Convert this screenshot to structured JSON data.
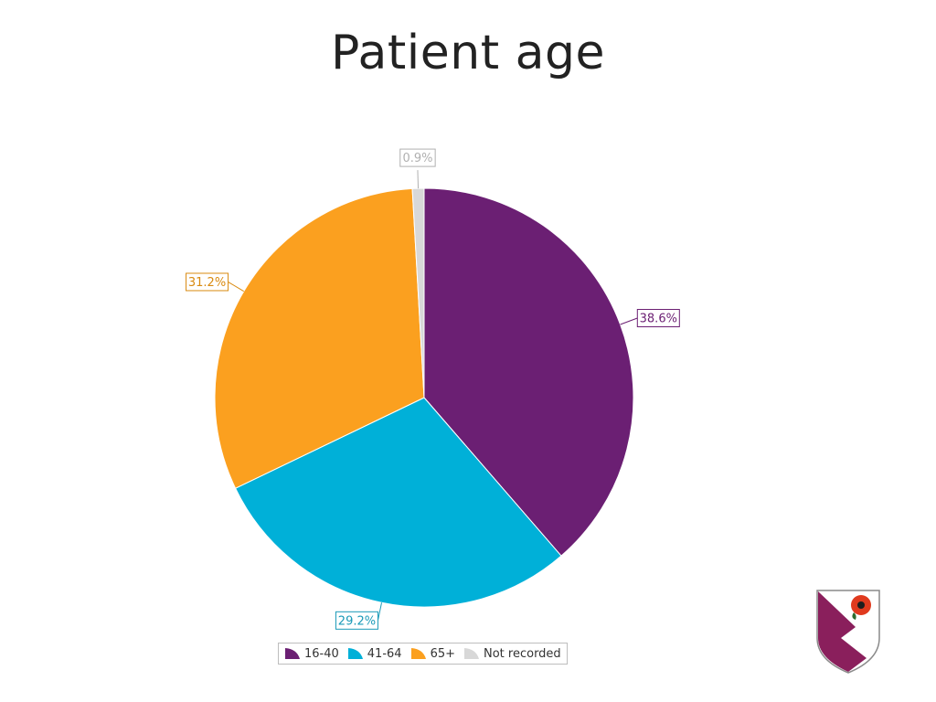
{
  "slide": {
    "title": "Patient age"
  },
  "chart_data": {
    "type": "pie",
    "title": "Patient age",
    "categories": [
      "16-40",
      "41-64",
      "65+",
      "Not recorded"
    ],
    "values": [
      38.6,
      29.2,
      31.2,
      0.9
    ],
    "data_labels": [
      "38.6%",
      "29.2%",
      "31.2%",
      "0.9%"
    ],
    "colors": [
      "#6b1f73",
      "#00b0d8",
      "#fba01f",
      "#d8d8d8"
    ],
    "label_text_colors": [
      "#6b1f73",
      "#1a9ab8",
      "#d98a10",
      "#b0b0b0"
    ],
    "start_angle": "12 o'clock",
    "direction": "clockwise",
    "legend": {
      "placement": "bottom",
      "items": [
        "16-40",
        "41-64",
        "65+",
        "Not recorded"
      ]
    }
  },
  "logo": {
    "icon": "shield-crest-icon",
    "colors": [
      "#8a1f5c",
      "#ffffff",
      "#e03a1e"
    ]
  }
}
